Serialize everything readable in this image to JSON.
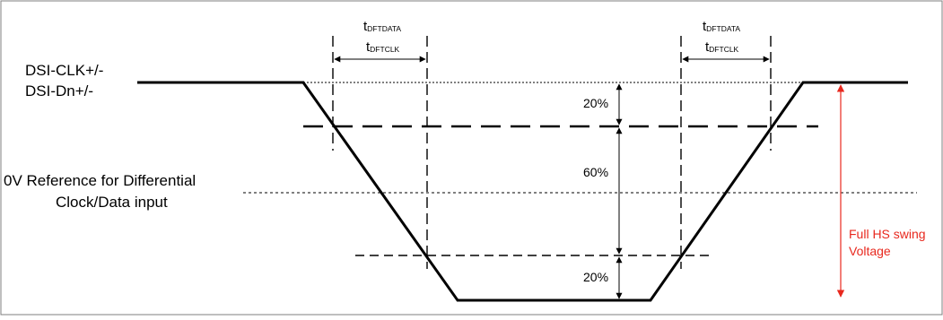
{
  "labels": {
    "signal_line1": "DSI-CLK+/-",
    "signal_line2": "DSI-Dn+/-",
    "reference_line1": "0V Reference for Differential",
    "reference_line2": "Clock/Data input",
    "swing_line1": "Full HS swing",
    "swing_line2": "Voltage"
  },
  "timing": {
    "data_main": "t",
    "data_sub": "DFTDATA",
    "clk_main": "t",
    "clk_sub": "DFTCLK"
  },
  "levels": {
    "upper": "20%",
    "middle": "60%",
    "lower": "20%"
  },
  "colors": {
    "line": "#000000",
    "accent": "#e8281e",
    "frame": "#7f7f7f"
  }
}
